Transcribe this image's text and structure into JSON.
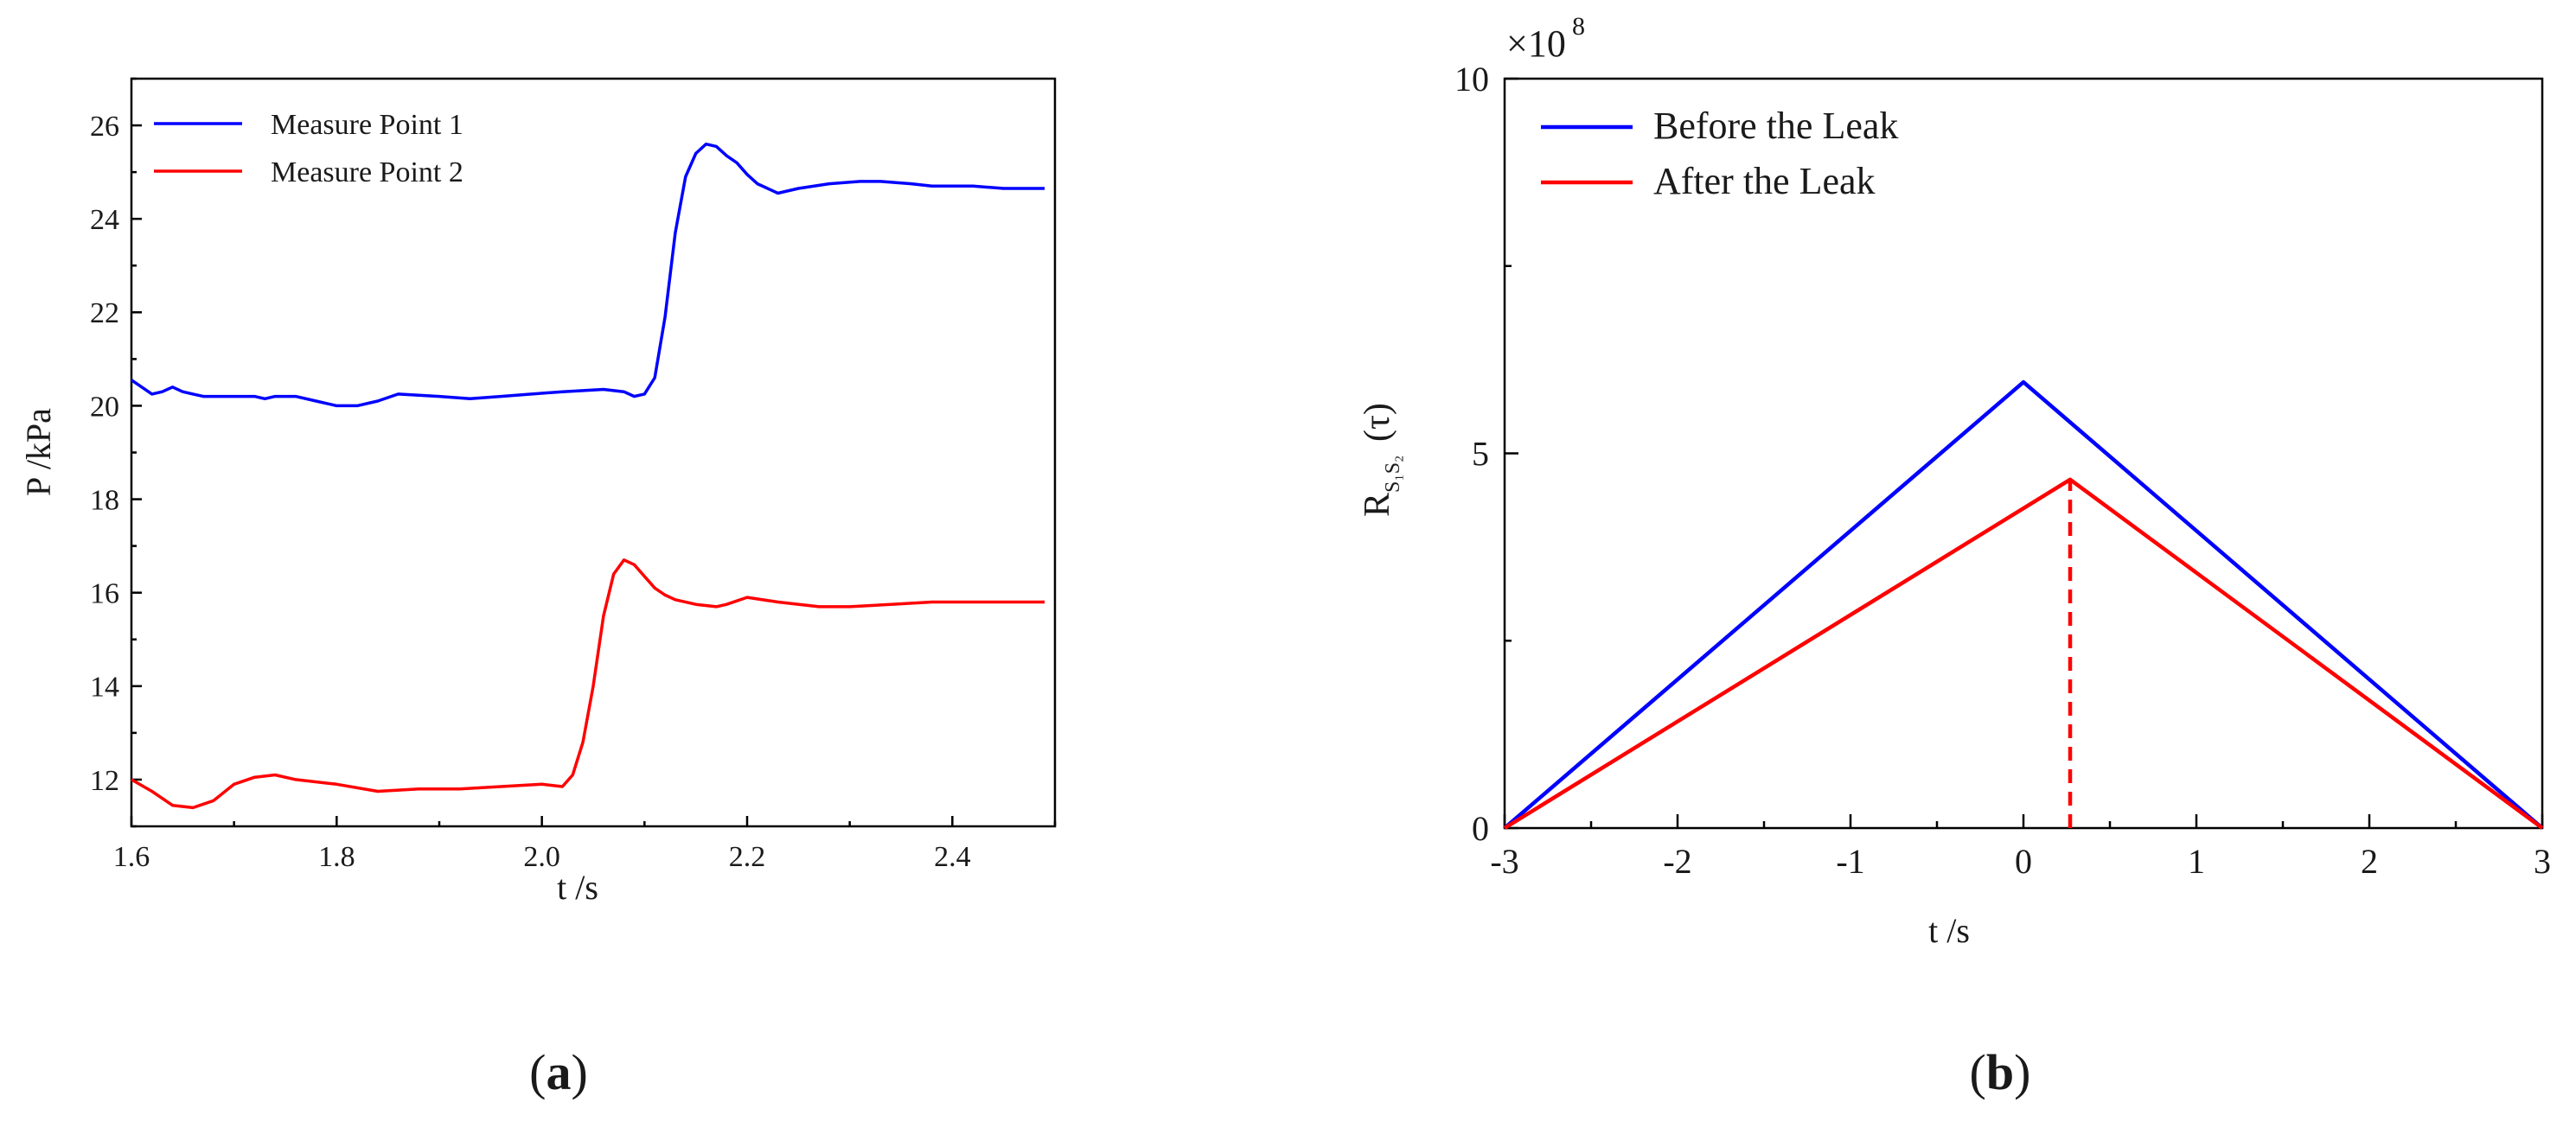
{
  "chart_data": [
    {
      "type": "line",
      "panel_label": "a",
      "title": "",
      "xlabel": "t /s",
      "ylabel": "P /kPa",
      "xlim": [
        1.6,
        2.5
      ],
      "ylim": [
        11,
        27
      ],
      "xticks": [
        1.6,
        1.8,
        2.0,
        2.2,
        2.4
      ],
      "xtick_labels": [
        "1.6",
        "1.8",
        "2.0",
        "2.2",
        "2.4"
      ],
      "yticks": [
        12,
        14,
        16,
        18,
        20,
        22,
        24,
        26
      ],
      "ytick_labels": [
        "12",
        "14",
        "16",
        "18",
        "20",
        "22",
        "24",
        "26"
      ],
      "grid": false,
      "legend_position": "top-left",
      "series": [
        {
          "name": "Measure Point 1",
          "color": "#0000ff",
          "x": [
            1.6,
            1.61,
            1.62,
            1.63,
            1.64,
            1.65,
            1.66,
            1.67,
            1.7,
            1.72,
            1.73,
            1.74,
            1.76,
            1.78,
            1.8,
            1.82,
            1.84,
            1.86,
            1.9,
            1.93,
            1.96,
            1.99,
            2.02,
            2.06,
            2.08,
            2.09,
            2.1,
            2.11,
            2.12,
            2.13,
            2.14,
            2.15,
            2.16,
            2.17,
            2.18,
            2.19,
            2.2,
            2.21,
            2.23,
            2.25,
            2.28,
            2.31,
            2.33,
            2.36,
            2.38,
            2.42,
            2.45,
            2.49
          ],
          "values": [
            20.55,
            20.4,
            20.25,
            20.3,
            20.4,
            20.3,
            20.25,
            20.2,
            20.2,
            20.2,
            20.15,
            20.2,
            20.2,
            20.1,
            20.0,
            20.0,
            20.1,
            20.25,
            20.2,
            20.15,
            20.2,
            20.25,
            20.3,
            20.35,
            20.3,
            20.2,
            20.25,
            20.6,
            21.9,
            23.7,
            24.9,
            25.4,
            25.6,
            25.55,
            25.35,
            25.2,
            24.95,
            24.75,
            24.55,
            24.65,
            24.75,
            24.8,
            24.8,
            24.75,
            24.7,
            24.7,
            24.65,
            24.65
          ]
        },
        {
          "name": "Measure Point 2",
          "color": "#ff0000",
          "x": [
            1.6,
            1.62,
            1.64,
            1.66,
            1.68,
            1.7,
            1.72,
            1.74,
            1.76,
            1.8,
            1.84,
            1.88,
            1.92,
            1.96,
            2.0,
            2.02,
            2.03,
            2.04,
            2.05,
            2.06,
            2.07,
            2.08,
            2.09,
            2.1,
            2.11,
            2.12,
            2.13,
            2.15,
            2.17,
            2.18,
            2.2,
            2.23,
            2.27,
            2.3,
            2.34,
            2.38,
            2.42,
            2.49
          ],
          "values": [
            12.0,
            11.75,
            11.45,
            11.4,
            11.55,
            11.9,
            12.05,
            12.1,
            12.0,
            11.9,
            11.75,
            11.8,
            11.8,
            11.85,
            11.9,
            11.85,
            12.1,
            12.8,
            14.0,
            15.5,
            16.4,
            16.7,
            16.6,
            16.35,
            16.1,
            15.95,
            15.85,
            15.75,
            15.7,
            15.75,
            15.9,
            15.8,
            15.7,
            15.7,
            15.75,
            15.8,
            15.8,
            15.8
          ]
        }
      ]
    },
    {
      "type": "line",
      "panel_label": "b",
      "title": "",
      "xlabel": "t /s",
      "ylabel": "R",
      "ylabel_subscript": "S₁S₂",
      "ylabel_suffix": "(τ)",
      "y_multiplier": "×10",
      "y_multiplier_exponent": "8",
      "xlim": [
        -3,
        3
      ],
      "ylim": [
        0,
        10
      ],
      "xticks": [
        -3,
        -2,
        -1,
        0,
        1,
        2,
        3
      ],
      "xtick_labels": [
        "-3",
        "-2",
        "-1",
        "0",
        "1",
        "2",
        "3"
      ],
      "yticks": [
        0,
        5,
        10
      ],
      "ytick_labels": [
        "0",
        "5",
        "10"
      ],
      "grid": false,
      "legend_position": "top-left",
      "series": [
        {
          "name": "Before the Leak",
          "color": "#0000ff",
          "x": [
            -3,
            0,
            3
          ],
          "values": [
            0,
            5.95,
            0
          ]
        },
        {
          "name": "After the Leak",
          "color": "#ff0000",
          "x": [
            -3,
            0.27,
            3
          ],
          "values": [
            0,
            4.65,
            0
          ]
        }
      ],
      "annotations": [
        {
          "type": "dashed-vertical",
          "color": "#ff0000",
          "x": 0.27,
          "y_from": 0,
          "y_to": 4.65
        }
      ]
    }
  ],
  "captions": {
    "a": {
      "open": "(",
      "letter": "a",
      "close": ")"
    },
    "b": {
      "open": "(",
      "letter": "b",
      "close": ")"
    }
  }
}
